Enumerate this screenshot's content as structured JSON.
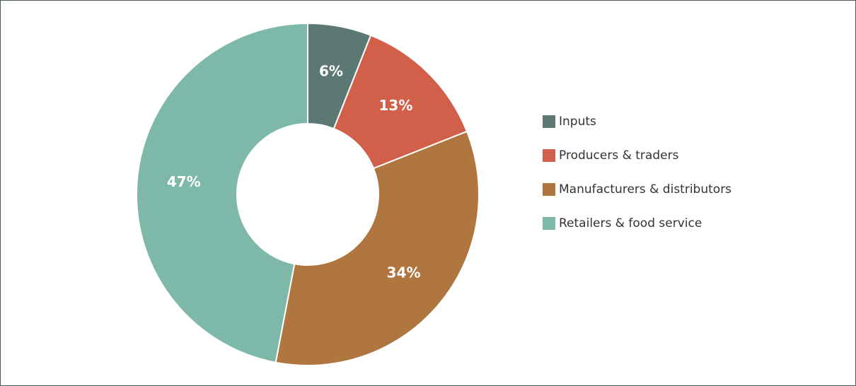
{
  "chart_data": {
    "type": "donut",
    "categories": [
      "Inputs",
      "Producers & traders",
      "Manufacturers & distributors",
      "Retailers & food service"
    ],
    "values": [
      6,
      13,
      34,
      47
    ],
    "value_labels": [
      "6%",
      "13%",
      "34%",
      "47%"
    ],
    "colors": [
      "#5b7873",
      "#d15f4a",
      "#b0763f",
      "#7db8a8"
    ],
    "legend": "right"
  }
}
